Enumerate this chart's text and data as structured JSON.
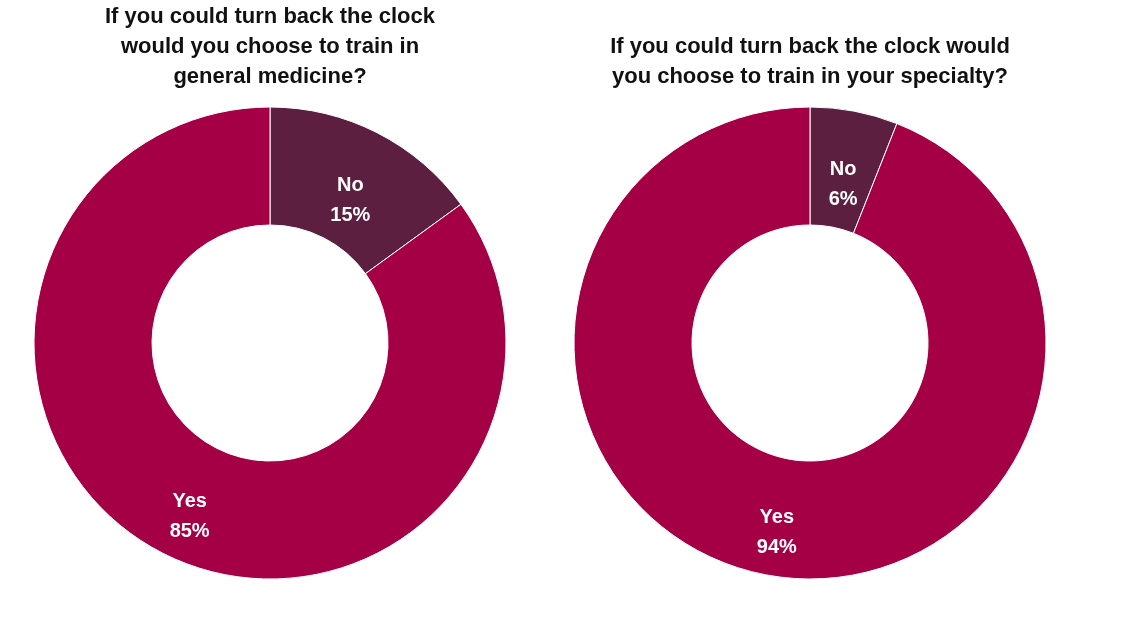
{
  "chart_data": [
    {
      "type": "donut",
      "title": "If you could turn back the clock would you choose to train in general medicine?",
      "categories": [
        "No",
        "Yes"
      ],
      "values": [
        15,
        85
      ],
      "colors": [
        "#5c1f40",
        "#a50045"
      ],
      "value_labels": [
        "15%",
        "85%"
      ],
      "legend": false
    },
    {
      "type": "donut",
      "title": "If you could turn back the clock would you choose to train in your specialty?",
      "categories": [
        "No",
        "Yes"
      ],
      "values": [
        6,
        94
      ],
      "colors": [
        "#5c1f40",
        "#a50045"
      ],
      "value_labels": [
        "6%",
        "94%"
      ],
      "legend": false
    }
  ]
}
